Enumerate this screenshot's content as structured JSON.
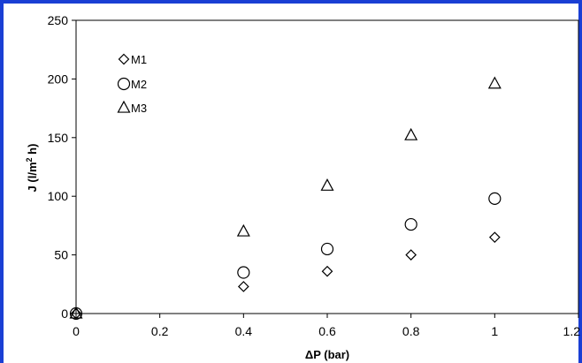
{
  "colors": {
    "frame": "#1a3fd4",
    "marker": "#000000",
    "background": "#ffffff"
  },
  "chart_data": {
    "type": "scatter",
    "title": "",
    "xlabel": "ΔP (bar)",
    "ylabel_main": "J (l/m",
    "ylabel_sup": "2",
    "ylabel_tail": " h)",
    "xlim": [
      0,
      1.2
    ],
    "ylim": [
      0,
      250
    ],
    "xticks": [
      "0",
      "0.2",
      "0.4",
      "0.6",
      "0.8",
      "1",
      "1.2"
    ],
    "yticks": [
      "0",
      "50",
      "100",
      "150",
      "200",
      "250"
    ],
    "grid": false,
    "legend_position": "top-left",
    "series": [
      {
        "name": "M1",
        "marker": "diamond",
        "x": [
          0,
          0.4,
          0.6,
          0.8,
          1.0
        ],
        "y": [
          0,
          23,
          36,
          50,
          65
        ]
      },
      {
        "name": "M2",
        "marker": "circle",
        "x": [
          0,
          0.4,
          0.6,
          0.8,
          1.0
        ],
        "y": [
          0,
          35,
          55,
          76,
          98
        ]
      },
      {
        "name": "M3",
        "marker": "triangle",
        "x": [
          0,
          0.4,
          0.6,
          0.8,
          1.0
        ],
        "y": [
          0,
          70,
          109,
          152,
          196
        ]
      }
    ]
  }
}
